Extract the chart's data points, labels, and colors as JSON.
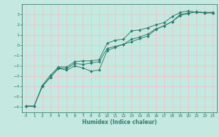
{
  "xlabel": "Humidex (Indice chaleur)",
  "bg_color": "#c5e8e0",
  "grid_color": "#e8c8c8",
  "line_color": "#2e7d6e",
  "spine_color": "#2e7d6e",
  "xlim": [
    -0.5,
    23.5
  ],
  "ylim": [
    -6.5,
    4.0
  ],
  "xticks": [
    0,
    1,
    2,
    3,
    4,
    5,
    6,
    7,
    8,
    9,
    10,
    11,
    12,
    13,
    14,
    15,
    16,
    17,
    18,
    19,
    20,
    21,
    22,
    23
  ],
  "yticks": [
    -6,
    -5,
    -4,
    -3,
    -2,
    -1,
    0,
    1,
    2,
    3
  ],
  "line1_x": [
    0,
    1,
    2,
    3,
    4,
    5,
    6,
    7,
    8,
    9,
    10,
    11,
    12,
    13,
    14,
    15,
    16,
    17,
    18,
    19,
    20,
    21,
    22,
    23
  ],
  "line1_y": [
    -5.9,
    -5.9,
    -3.9,
    -2.9,
    -2.1,
    -2.1,
    -1.6,
    -1.5,
    -1.5,
    -1.4,
    0.2,
    0.5,
    0.6,
    1.4,
    1.5,
    1.7,
    2.0,
    2.2,
    2.8,
    3.2,
    3.35,
    3.2,
    3.2,
    3.2
  ],
  "line2_x": [
    0,
    1,
    2,
    3,
    4,
    5,
    6,
    7,
    8,
    9,
    10,
    11,
    12,
    13,
    14,
    15,
    16,
    17,
    18,
    19,
    20,
    21,
    22,
    23
  ],
  "line2_y": [
    -5.9,
    -5.9,
    -4.0,
    -3.1,
    -2.2,
    -2.25,
    -1.75,
    -1.85,
    -1.7,
    -1.6,
    -0.3,
    -0.1,
    0.1,
    0.6,
    0.8,
    1.1,
    1.6,
    1.9,
    2.3,
    3.0,
    3.15,
    3.25,
    3.15,
    3.15
  ],
  "line3_x": [
    0,
    1,
    2,
    3,
    4,
    5,
    6,
    7,
    8,
    9,
    10,
    11,
    12,
    13,
    14,
    15,
    16,
    17,
    18,
    19,
    20,
    21,
    22,
    23
  ],
  "line3_y": [
    -5.9,
    -5.9,
    -4.0,
    -3.1,
    -2.25,
    -2.4,
    -2.0,
    -2.2,
    -2.5,
    -2.4,
    -0.5,
    -0.2,
    0.1,
    0.35,
    0.65,
    0.9,
    1.55,
    1.9,
    2.3,
    2.9,
    3.1,
    3.25,
    3.15,
    3.15
  ]
}
